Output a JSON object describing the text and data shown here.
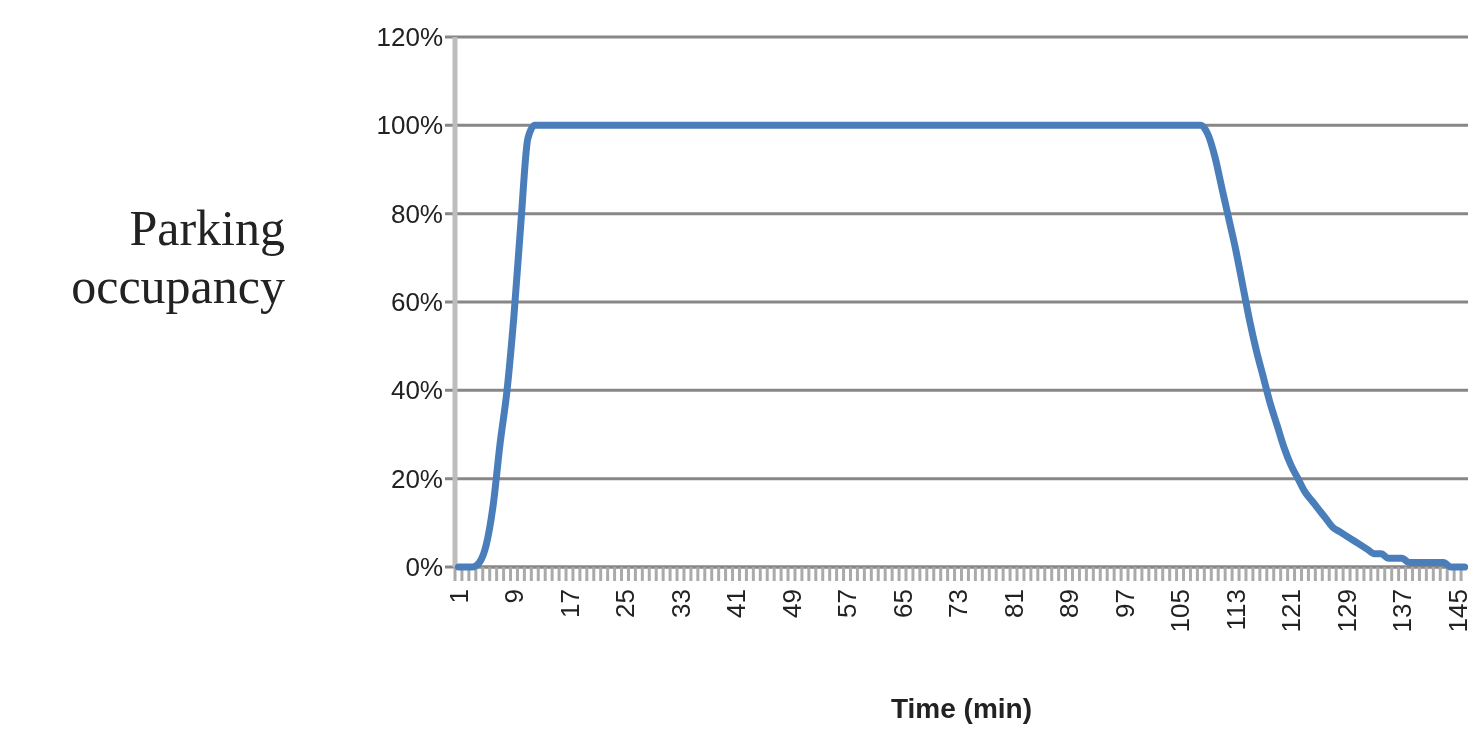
{
  "chart_data": {
    "type": "line",
    "xlabel": "Time (min)",
    "ylabel": "Parking occupancy",
    "categories": [
      "1",
      null,
      null,
      null,
      null,
      null,
      null,
      null,
      "9",
      null,
      null,
      null,
      null,
      null,
      null,
      null,
      "17",
      null,
      null,
      null,
      null,
      null,
      null,
      null,
      "25",
      null,
      null,
      null,
      null,
      null,
      null,
      null,
      "33",
      null,
      null,
      null,
      null,
      null,
      null,
      null,
      "41",
      null,
      null,
      null,
      null,
      null,
      null,
      null,
      "49",
      null,
      null,
      null,
      null,
      null,
      null,
      null,
      "57",
      null,
      null,
      null,
      null,
      null,
      null,
      null,
      "65",
      null,
      null,
      null,
      null,
      null,
      null,
      null,
      "73",
      null,
      null,
      null,
      null,
      null,
      null,
      null,
      "81",
      null,
      null,
      null,
      null,
      null,
      null,
      null,
      "89",
      null,
      null,
      null,
      null,
      null,
      null,
      null,
      "97",
      null,
      null,
      null,
      null,
      null,
      null,
      null,
      "105",
      null,
      null,
      null,
      null,
      null,
      null,
      null,
      "113",
      null,
      null,
      null,
      null,
      null,
      null,
      null,
      "121",
      null,
      null,
      null,
      null,
      null,
      null,
      null,
      "129",
      null,
      null,
      null,
      null,
      null,
      null,
      null,
      "137",
      null,
      null,
      null,
      null,
      null,
      null,
      null,
      "145",
      null
    ],
    "series": [
      {
        "color": "#4a7ebb",
        "values": [
          0,
          0,
          0,
          1,
          5,
          14,
          28,
          40,
          57,
          78,
          97,
          100,
          100,
          100,
          100,
          100,
          100,
          100,
          100,
          100,
          100,
          100,
          100,
          100,
          100,
          100,
          100,
          100,
          100,
          100,
          100,
          100,
          100,
          100,
          100,
          100,
          100,
          100,
          100,
          100,
          100,
          100,
          100,
          100,
          100,
          100,
          100,
          100,
          100,
          100,
          100,
          100,
          100,
          100,
          100,
          100,
          100,
          100,
          100,
          100,
          100,
          100,
          100,
          100,
          100,
          100,
          100,
          100,
          100,
          100,
          100,
          100,
          100,
          100,
          100,
          100,
          100,
          100,
          100,
          100,
          100,
          100,
          100,
          100,
          100,
          100,
          100,
          100,
          100,
          100,
          100,
          100,
          100,
          100,
          100,
          100,
          100,
          100,
          100,
          100,
          100,
          100,
          100,
          100,
          100,
          100,
          100,
          100,
          98,
          93,
          86,
          79,
          72,
          64,
          56,
          49,
          43,
          37,
          32,
          27,
          23,
          20,
          17,
          15,
          13,
          11,
          9,
          8,
          7,
          6,
          5,
          4,
          3,
          3,
          2,
          2,
          2,
          1,
          1,
          1,
          1,
          1,
          1,
          0,
          0,
          0
        ]
      }
    ],
    "ylim": [
      0,
      120
    ],
    "yticks": [
      {
        "value": 0,
        "label": "0%"
      },
      {
        "value": 20,
        "label": "20%"
      },
      {
        "value": 40,
        "label": "40%"
      },
      {
        "value": 60,
        "label": "60%"
      },
      {
        "value": 80,
        "label": "80%"
      },
      {
        "value": 100,
        "label": "100%"
      },
      {
        "value": 120,
        "label": "120%"
      }
    ],
    "grid": "y",
    "marker": "none",
    "line_style": "solid"
  }
}
